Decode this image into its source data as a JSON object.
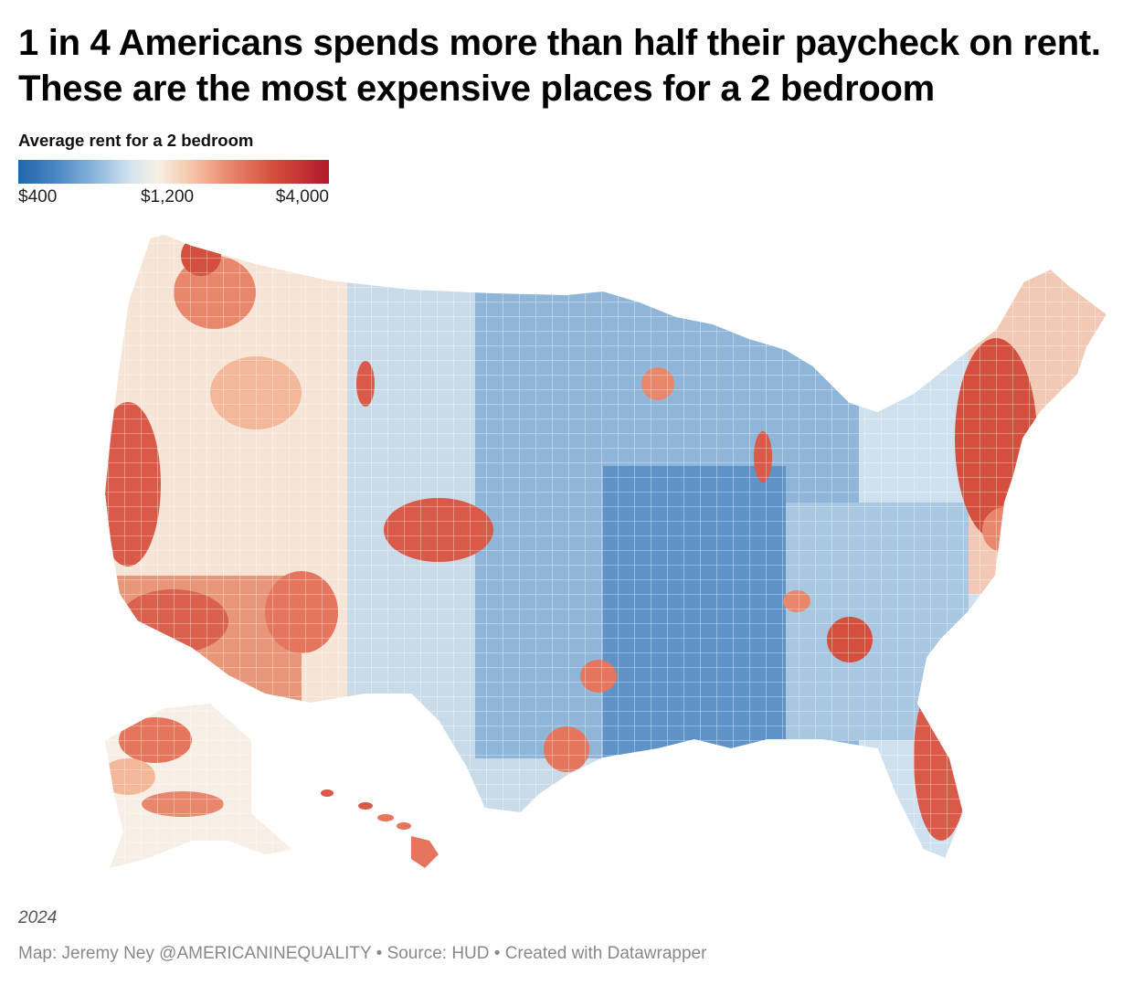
{
  "title": "1 in 4 Americans spends more than half their paycheck on rent. These are the most expensive places for a 2 bedroom",
  "legend": {
    "title": "Average rent for a 2 bedroom",
    "min_label": "$400",
    "mid_label": "$1,200",
    "max_label": "$4,000",
    "colors": [
      "#2166ac",
      "#4a86c3",
      "#8db7dc",
      "#d3e3ef",
      "#f7f1e4",
      "#f6c9ac",
      "#e8876c",
      "#d4503e",
      "#b2182b"
    ]
  },
  "year_note": "2024",
  "footer": "Map: Jeremy Ney @AMERICANINEQUALITY • Source: HUD • Created with Datawrapper",
  "map": {
    "region": "United States counties",
    "high_rent_areas": [
      "Bay Area, California",
      "Southern California coast",
      "Seattle area",
      "Denver–Colorado Front Range",
      "Northeast corridor",
      "South Florida",
      "Hawaii"
    ],
    "low_rent_areas": [
      "Great Plains",
      "Mississippi Valley",
      "Appalachia"
    ]
  }
}
